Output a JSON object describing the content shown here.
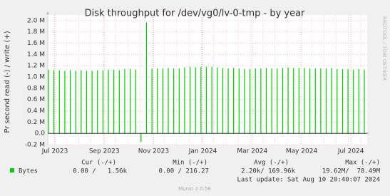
{
  "chart_data": {
    "type": "bar",
    "title": "Disk throughput for /dev/vg0/lv-0-tmp - by year",
    "y_label": "Pr second read (-) / write (+)",
    "watermark": "RRDTOOL / TOBI OETIKER",
    "xtick_labels": [
      "Jul 2023",
      "Sep 2023",
      "Nov 2023",
      "Jan 2024",
      "Mar 2024",
      "May 2024",
      "Jul 2024"
    ],
    "ylim": [
      -200000,
      2100000
    ],
    "yticks": [
      {
        "value": 2000000,
        "label": "2.0 M"
      },
      {
        "value": 1800000,
        "label": "1.8 M"
      },
      {
        "value": 1600000,
        "label": "1.6 M"
      },
      {
        "value": 1400000,
        "label": "1.4 M"
      },
      {
        "value": 1200000,
        "label": "1.2 M"
      },
      {
        "value": 1000000,
        "label": "1.0 M"
      },
      {
        "value": 800000,
        "label": "0.8 M"
      },
      {
        "value": 600000,
        "label": "0.6 M"
      },
      {
        "value": 400000,
        "label": "0.4 M"
      },
      {
        "value": 200000,
        "label": "0.2 M"
      },
      {
        "value": 0,
        "label": "0.0"
      },
      {
        "value": -200000,
        "label": "-0.2 M"
      }
    ],
    "grid": true,
    "series": [
      {
        "name": "Bytes",
        "color": "#00cc00",
        "values": [
          1130000,
          1120000,
          1120000,
          1110000,
          1120000,
          1110000,
          1120000,
          1110000,
          1110000,
          1120000,
          1120000,
          1130000,
          1130000,
          1120000,
          1140000,
          1140000,
          1130000,
          -150000,
          1970000,
          1150000,
          1150000,
          1150000,
          1160000,
          1150000,
          1150000,
          1170000,
          1180000,
          1170000,
          1180000,
          1180000,
          1180000,
          1170000,
          1160000,
          1150000,
          1160000,
          1150000,
          1140000,
          1140000,
          1150000,
          1150000,
          1160000,
          1150000,
          1150000,
          1160000,
          1170000,
          1160000,
          1160000,
          1160000,
          1150000,
          1150000,
          1150000,
          1150000,
          1160000,
          1140000,
          1140000,
          1140000,
          1130000,
          1140000,
          1130000
        ]
      }
    ],
    "legend_table": {
      "headers": [
        "Cur (-/+)",
        "Min (-/+)",
        "Avg (-/+)",
        "Max (-/+)"
      ],
      "row": [
        "0.00 /   1.56k",
        "0.00 / 216.27",
        "2.20k/ 169.96k",
        "19.62M/  78.49M"
      ]
    },
    "last_update": "Last update: Sat Aug 10 20:40:07 2024",
    "footer": "Munin 2.0.56"
  }
}
